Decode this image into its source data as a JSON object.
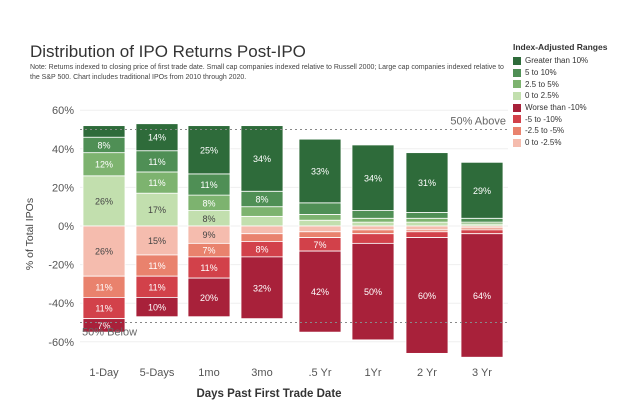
{
  "title": "Distribution of IPO Returns Post-IPO",
  "note": "Note: Returns indexed to closing price of first trade date. Small cap companies indexed relative to Russell 2000; Large cap companies indexed relative to the S&P 500. Chart includes traditional IPOs from 2010 through 2020.",
  "legend": {
    "title": "Index-Adjusted Ranges",
    "items": [
      {
        "label": "Greater than 10%",
        "color": "#2e6b3a"
      },
      {
        "label": "5 to 10%",
        "color": "#4f8f55"
      },
      {
        "label": "2.5 to 5%",
        "color": "#7db36f"
      },
      {
        "label": "0 to 2.5%",
        "color": "#c2dfae"
      },
      {
        "label": "Worse than -10%",
        "color": "#a8213a"
      },
      {
        "label": "-5 to -10%",
        "color": "#d2414a"
      },
      {
        "label": "-2.5 to -5%",
        "color": "#e9826d"
      },
      {
        "label": "0 to -2.5%",
        "color": "#f5bcae"
      }
    ]
  },
  "chart_data": {
    "type": "bar",
    "stacked": true,
    "xlabel": "Days Past First Trade Date",
    "ylabel": "% of Total IPOs",
    "ylim": [
      -70,
      65
    ],
    "yticks": [
      60,
      40,
      20,
      0,
      -20,
      -40,
      -60
    ],
    "ytick_labels": [
      "60%",
      "40%",
      "20%",
      "0%",
      "-20%",
      "-40%",
      "-60%"
    ],
    "categories": [
      "1-Day",
      "5-Days",
      "1mo",
      "3mo",
      ".5 Yr",
      "1Yr",
      "2 Yr",
      "3 Yr"
    ],
    "reference_lines": [
      {
        "value": 50,
        "label": "50% Above"
      },
      {
        "value": -50,
        "label": "50% Below"
      }
    ],
    "positive_series": [
      {
        "name": "0 to 2.5%",
        "color": "#c2dfae",
        "values": [
          26,
          17,
          8,
          5,
          3,
          2,
          2,
          1
        ],
        "labels": [
          "26%",
          "17%",
          "8%",
          "",
          "",
          "",
          "",
          ""
        ]
      },
      {
        "name": "2.5 to 5%",
        "color": "#7db36f",
        "values": [
          12,
          11,
          8,
          5,
          3,
          2,
          2,
          1
        ],
        "labels": [
          "12%",
          "11%",
          "8%",
          "",
          "",
          "",
          "",
          ""
        ]
      },
      {
        "name": "5 to 10%",
        "color": "#4f8f55",
        "values": [
          8,
          11,
          11,
          8,
          6,
          4,
          3,
          2
        ],
        "labels": [
          "8%",
          "11%",
          "11%",
          "8%",
          "",
          "",
          "",
          ""
        ]
      },
      {
        "name": "Greater than 10%",
        "color": "#2e6b3a",
        "values": [
          6,
          14,
          25,
          34,
          33,
          34,
          31,
          29
        ],
        "labels": [
          "",
          "14%",
          "25%",
          "34%",
          "33%",
          "34%",
          "31%",
          "29%"
        ]
      }
    ],
    "negative_series": [
      {
        "name": "0 to -2.5%",
        "color": "#f5bcae",
        "values": [
          26,
          15,
          9,
          4,
          3,
          2,
          2,
          1
        ],
        "labels": [
          "26%",
          "15%",
          "9%",
          "",
          "",
          "",
          "",
          ""
        ]
      },
      {
        "name": "-2.5 to -5%",
        "color": "#e9826d",
        "values": [
          11,
          11,
          7,
          4,
          3,
          2,
          1,
          1
        ],
        "labels": [
          "11%",
          "11%",
          "7%",
          "",
          "",
          "",
          "",
          ""
        ]
      },
      {
        "name": "-5 to -10%",
        "color": "#d2414a",
        "values": [
          11,
          11,
          11,
          8,
          7,
          5,
          3,
          2
        ],
        "labels": [
          "11%",
          "11%",
          "11%",
          "8%",
          "7%",
          "",
          "",
          ""
        ]
      },
      {
        "name": "Worse than -10%",
        "color": "#a8213a",
        "values": [
          7,
          10,
          20,
          32,
          42,
          50,
          60,
          64
        ],
        "labels": [
          "7%",
          "10%",
          "20%",
          "32%",
          "42%",
          "50%",
          "60%",
          "64%"
        ]
      }
    ]
  }
}
